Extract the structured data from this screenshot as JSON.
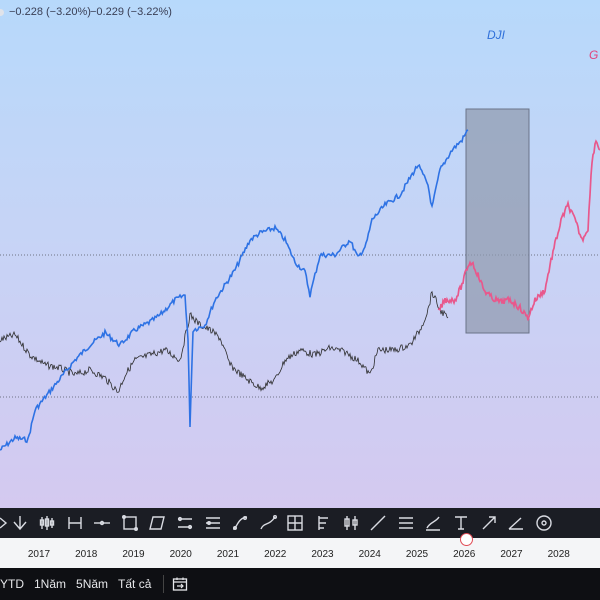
{
  "legend": {
    "change_abs": "−0.228 (−3.20%)",
    "change_pct": "−0.229 (−3.22%)"
  },
  "series_labels": {
    "dji": "DJI",
    "g": "G"
  },
  "colors": {
    "dji": "#2e72e4",
    "black_series": "#2b2b2b",
    "forecast": "#e8588c",
    "highlight_box": "#8e98ad"
  },
  "time_axis": {
    "years": [
      "2017",
      "2018",
      "2019",
      "2020",
      "2021",
      "2022",
      "2023",
      "2024",
      "2025",
      "2026",
      "2027",
      "2028"
    ]
  },
  "toolbar_icons": [
    "down-arrow-icon",
    "candles-icon",
    "long-position-icon",
    "horizontal-line-icon",
    "rectangle-icon",
    "parallelogram-icon",
    "parallel-channel-icon",
    "channel-icon",
    "curve-icon",
    "path-icon",
    "grid-icon",
    "fib-icon",
    "candle-pattern-icon",
    "trend-line-icon",
    "horizontal-lines-icon",
    "brush-icon",
    "text-tool-icon",
    "arrow-icon",
    "angle-icon",
    "circle-icon"
  ],
  "range_buttons": [
    "YTD",
    "1Năm",
    "5Năm",
    "Tất cả"
  ],
  "compare_icon": "calendar-compare-icon"
}
